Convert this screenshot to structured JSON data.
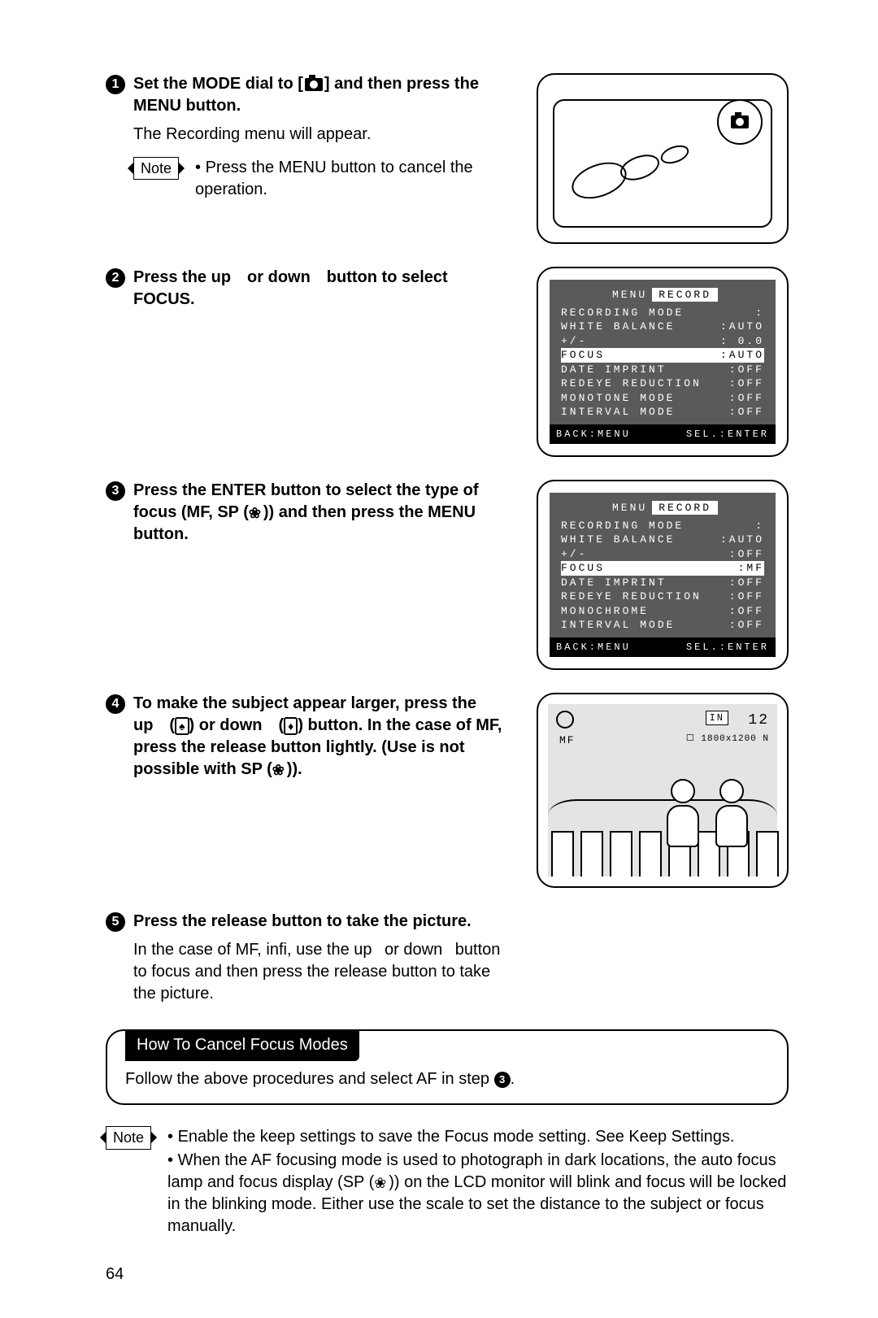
{
  "page_number": "64",
  "steps": {
    "s1": {
      "num": "1",
      "title_a": "Set the MODE dial to [",
      "title_b": "] and then press the MENU button.",
      "desc": "The Recording menu will appear.",
      "note": "Press the MENU button to cancel the operation."
    },
    "s2": {
      "num": "2",
      "title": "Press the up or down button to select FOCUS."
    },
    "s3": {
      "num": "3",
      "title_a": "Press the ENTER button to select the type of focus (MF, SP (",
      "title_b": ")) and then press the MENU button."
    },
    "s4": {
      "num": "4",
      "title_a": "To make the subject appear larger, press the up (",
      "title_b": ") or down (",
      "title_c": ") button. In the case of MF, press the release button lightly. (Use is not possible with SP (",
      "title_d": "))."
    },
    "s5": {
      "num": "5",
      "title": "Press the release button to take the picture.",
      "desc": "In the case of MF, infi, use the up  or down  button to focus and then press the release button to take the picture."
    }
  },
  "menu1": {
    "tab_a": "MENU",
    "tab_b": "RECORD",
    "rows": [
      {
        "lab": "RECORDING MODE",
        "val": ":",
        "hl": false
      },
      {
        "lab": "WHITE BALANCE",
        "val": ":AUTO",
        "hl": false
      },
      {
        "lab": "+/-",
        "val": ": 0.0",
        "hl": false
      },
      {
        "lab": "FOCUS",
        "val": ":AUTO",
        "hl": true
      },
      {
        "lab": "DATE IMPRINT",
        "val": ":OFF",
        "hl": false
      },
      {
        "lab": "REDEYE REDUCTION",
        "val": ":OFF",
        "hl": false
      },
      {
        "lab": "MONOTONE MODE",
        "val": ":OFF",
        "hl": false
      },
      {
        "lab": "INTERVAL MODE",
        "val": ":OFF",
        "hl": false
      }
    ],
    "foot_l": "BACK:MENU",
    "foot_r": "SEL.:ENTER"
  },
  "menu2": {
    "tab_a": "MENU",
    "tab_b": "RECORD",
    "rows": [
      {
        "lab": "RECORDING MODE",
        "val": ":",
        "hl": false
      },
      {
        "lab": "WHITE BALANCE",
        "val": ":AUTO",
        "hl": false
      },
      {
        "lab": "+/-",
        "val": ":OFF",
        "hl": false
      },
      {
        "lab": "FOCUS",
        "val": ":MF",
        "hl": true
      },
      {
        "lab": "DATE IMPRINT",
        "val": ":OFF",
        "hl": false
      },
      {
        "lab": "REDEYE REDUCTION",
        "val": ":OFF",
        "hl": false
      },
      {
        "lab": "MONOCHROME",
        "val": ":OFF",
        "hl": false
      },
      {
        "lab": "INTERVAL MODE",
        "val": ":OFF",
        "hl": false
      }
    ],
    "foot_l": "BACK:MENU",
    "foot_r": "SEL.:ENTER"
  },
  "live": {
    "in_label": "IN",
    "count": "12",
    "mf": "MF",
    "res": "1800x1200 N"
  },
  "cancel": {
    "title": "How To Cancel Focus Modes",
    "body_a": "Follow the above procedures and select AF in step ",
    "body_num": "3",
    "body_b": "."
  },
  "bottom_note": {
    "l1": "Enable the keep settings to save the Focus mode setting. See Keep Settings.",
    "l2a": "When the AF focusing mode is used to photograph in dark locations, the auto focus lamp and focus display (SP (",
    "l2b": ")) on the LCD monitor will blink and  focus will be locked in the blinking mode. Either use the scale to set the distance to the subject or focus manually."
  },
  "labels": {
    "note": "Note"
  }
}
